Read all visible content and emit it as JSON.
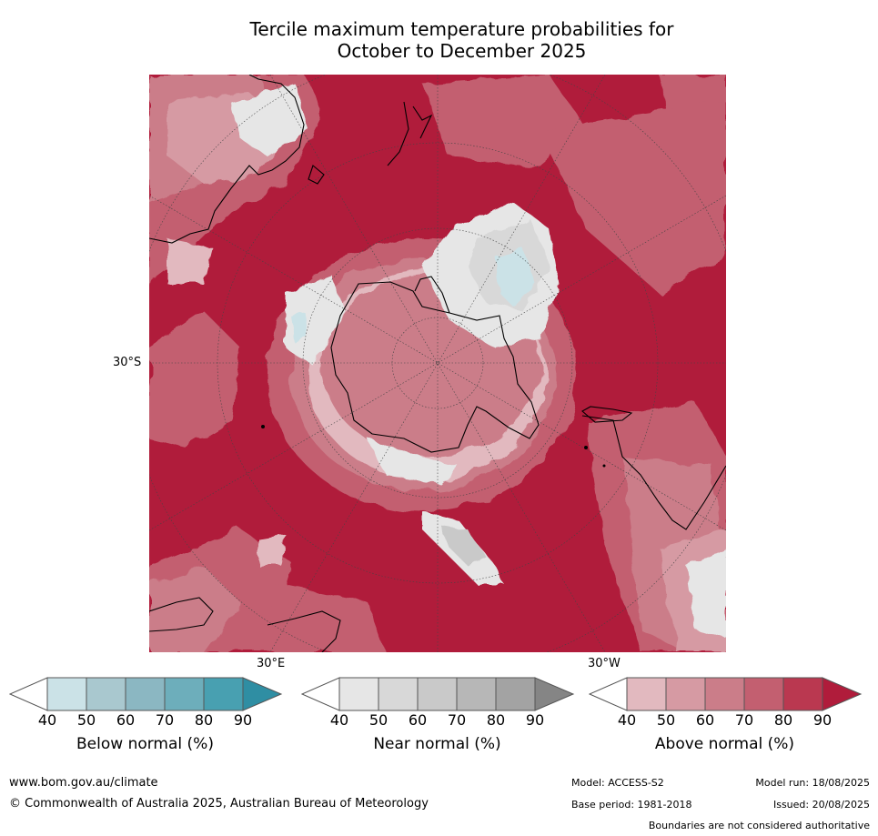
{
  "title_line1": "Tercile maximum temperature probabilities for",
  "title_line2": "October to December 2025",
  "axis_labels": {
    "lat": "30°S",
    "lon_east": "30°E",
    "lon_west": "30°W"
  },
  "legends": [
    {
      "title": "Below normal (%)",
      "ticks": [
        "40",
        "50",
        "60",
        "70",
        "80",
        "90"
      ],
      "colors": [
        "#ffffff",
        "#cbe2e7",
        "#a9c8cf",
        "#8bb7c2",
        "#6daebb",
        "#48a0b1",
        "#2f8ea3"
      ]
    },
    {
      "title": "Near normal (%)",
      "ticks": [
        "40",
        "50",
        "60",
        "70",
        "80",
        "90"
      ],
      "colors": [
        "#ffffff",
        "#e6e6e6",
        "#d8d8d8",
        "#c9c9c9",
        "#b7b7b7",
        "#a3a3a3",
        "#858585"
      ]
    },
    {
      "title": "Above normal (%)",
      "ticks": [
        "40",
        "50",
        "60",
        "70",
        "80",
        "90"
      ],
      "colors": [
        "#ffffff",
        "#e2b9bf",
        "#d69aa3",
        "#cb7d89",
        "#c35f70",
        "#ba3850",
        "#b01c3b"
      ]
    }
  ],
  "footer": {
    "website": "www.bom.gov.au/climate",
    "copyright": "© Commonwealth of Australia 2025, Australian Bureau of Meteorology",
    "model": "Model: ACCESS-S2",
    "model_run": "Model run: 18/08/2025",
    "base_period": "Base period: 1981-2018",
    "issued": "Issued: 20/08/2025",
    "disclaimer": "Boundaries are not considered authoritative"
  },
  "map_colors": {
    "above_90": "#b01c3b",
    "above_80": "#ba3850",
    "above_70": "#c35f70",
    "above_60": "#cb7d89",
    "above_50": "#d69aa3",
    "above_40": "#e2b9bf",
    "near_50": "#e6e6e6",
    "near_70": "#c9c9c9",
    "below_50": "#cbe2e7",
    "below_60": "#a9c8cf"
  }
}
